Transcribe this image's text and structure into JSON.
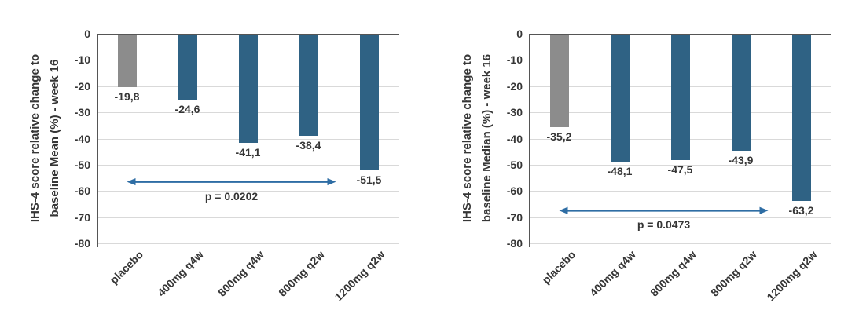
{
  "style": {
    "background": "#ffffff",
    "bar_teal": "#2f6284",
    "bar_gray": "#8c8c8c",
    "grid_color": "#d9d9d9",
    "axis_color": "#555555",
    "arrow_color": "#2e6da4",
    "text_color": "#363636"
  },
  "chart_data": [
    {
      "type": "bar",
      "title_lines": [
        "IHS-4 score relative change to",
        "baseline Mean (%) - week 16"
      ],
      "categories": [
        "placebo",
        "400mg q4w",
        "800mg q4w",
        "800mg q2w",
        "1200mg q2w"
      ],
      "values": [
        -19.8,
        -24.6,
        -41.1,
        -38.4,
        -51.5
      ],
      "value_labels": [
        "-19,8",
        "-24,6",
        "-41,1",
        "-38,4",
        "-51,5"
      ],
      "bar_colors": [
        "#8c8c8c",
        "#2f6284",
        "#2f6284",
        "#2f6284",
        "#2f6284"
      ],
      "ylim": [
        -80,
        0
      ],
      "ytick_step": 10,
      "ytick_labels": [
        "0",
        "-10",
        "-20",
        "-30",
        "-40",
        "-50",
        "-60",
        "-70",
        "-80"
      ],
      "grid": true,
      "legend": null,
      "annotation": {
        "text": "p = 0.0202",
        "arrow_y": -56.5,
        "from_category": "placebo",
        "to_category": "1200mg q2w"
      }
    },
    {
      "type": "bar",
      "title_lines": [
        "IHS-4 score relative change to",
        "baseline Median (%) - week 16"
      ],
      "categories": [
        "placebo",
        "400mg q4w",
        "800mg q4w",
        "800mg q2w",
        "1200mg q2w"
      ],
      "values": [
        -35.2,
        -48.1,
        -47.5,
        -43.9,
        -63.2
      ],
      "value_labels": [
        "-35,2",
        "-48,1",
        "-47,5",
        "-43,9",
        "-63,2"
      ],
      "bar_colors": [
        "#8c8c8c",
        "#2f6284",
        "#2f6284",
        "#2f6284",
        "#2f6284"
      ],
      "ylim": [
        -80,
        0
      ],
      "ytick_step": 10,
      "ytick_labels": [
        "0",
        "-10",
        "-20",
        "-30",
        "-40",
        "-50",
        "-60",
        "-70",
        "-80"
      ],
      "grid": true,
      "legend": null,
      "annotation": {
        "text": "p = 0.0473",
        "arrow_y": -67.5,
        "from_category": "placebo",
        "to_category": "1200mg q2w"
      }
    }
  ]
}
